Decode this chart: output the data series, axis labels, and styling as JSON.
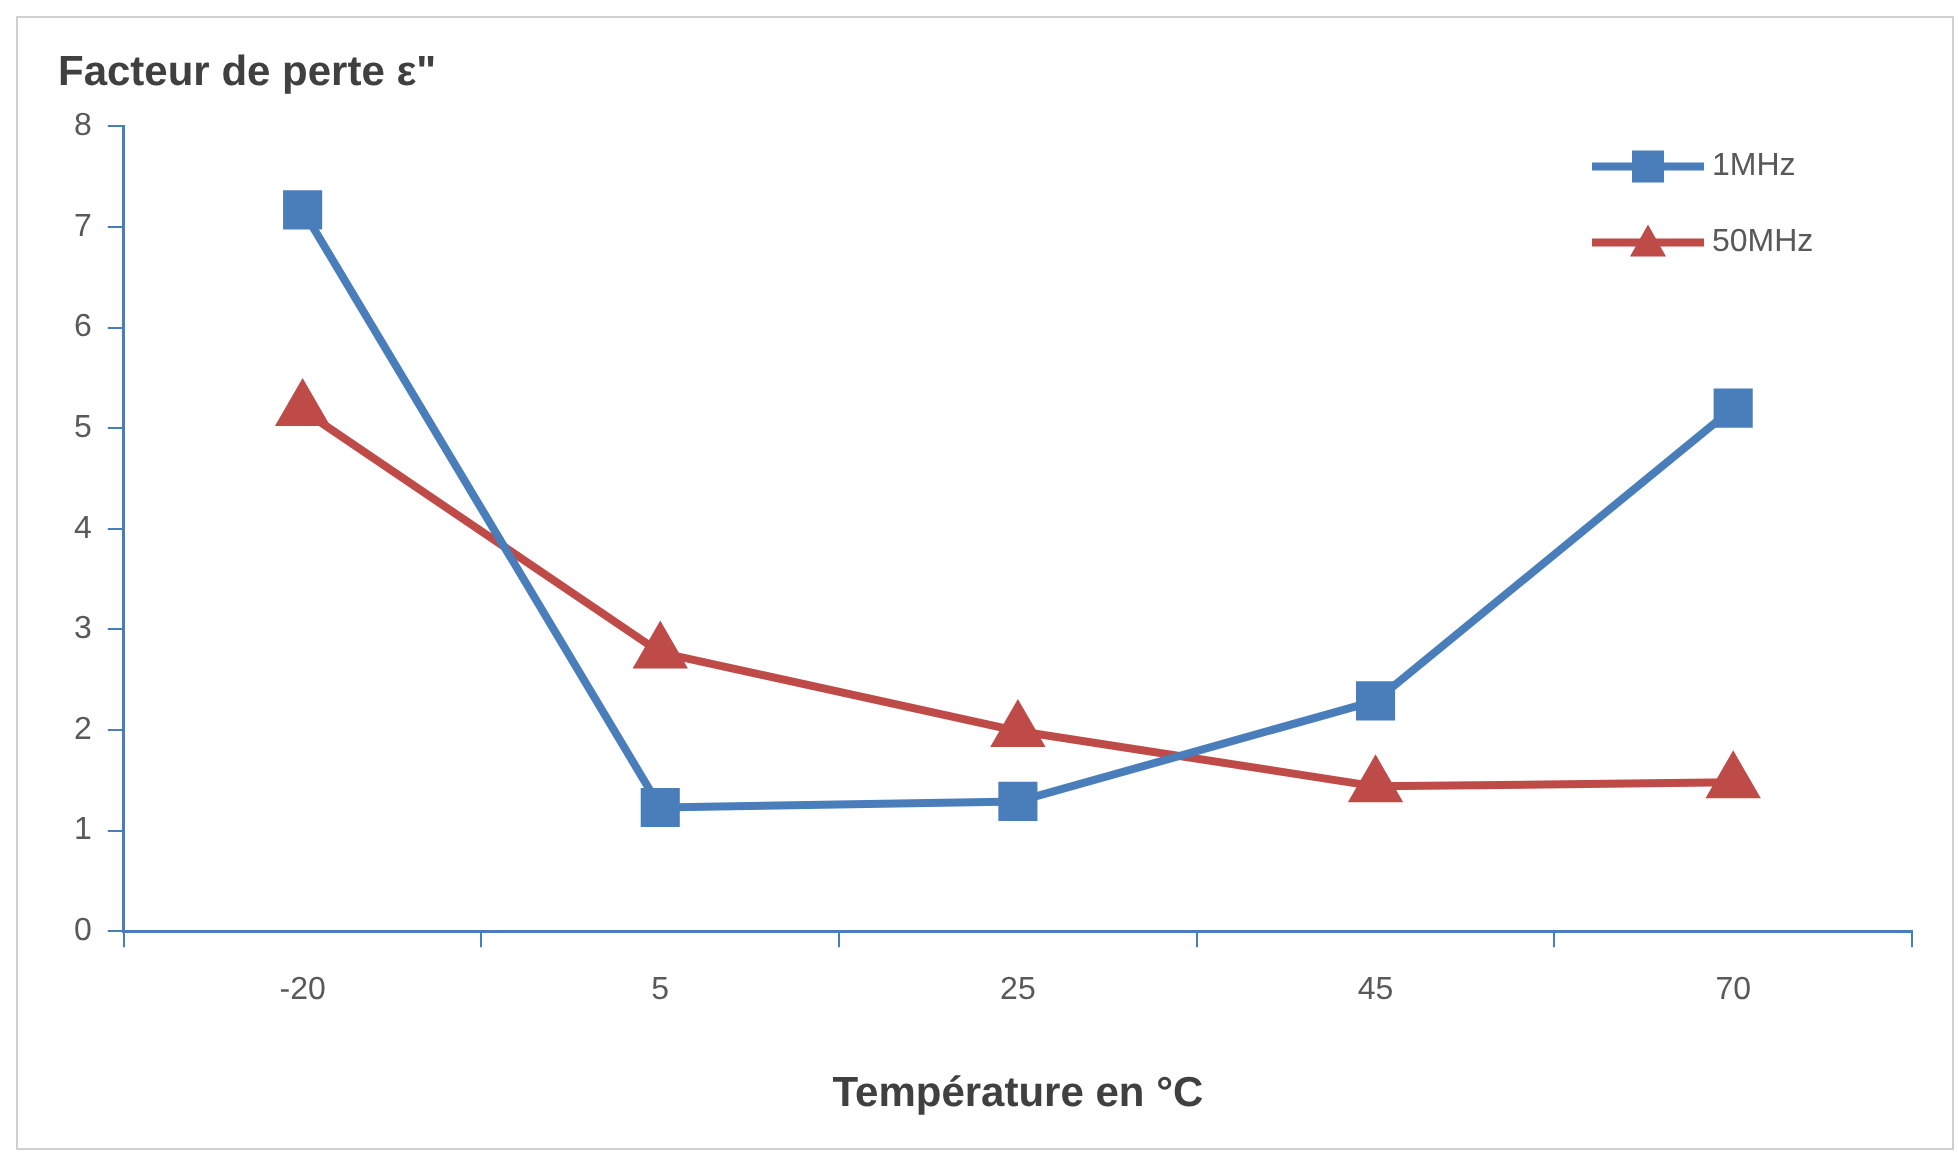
{
  "chart_data": {
    "type": "line",
    "ylabel": "Facteur de perte ε\"",
    "xlabel": "Température en °C",
    "categories": [
      "-20",
      "5",
      "25",
      "45",
      "70"
    ],
    "series": [
      {
        "name": "1MHz",
        "color": "#4a7ebb",
        "marker": "square",
        "values": [
          7.17,
          1.23,
          1.29,
          2.29,
          5.2
        ]
      },
      {
        "name": "50MHz",
        "color": "#be4b48",
        "marker": "triangle",
        "values": [
          5.18,
          2.77,
          1.99,
          1.44,
          1.48
        ]
      }
    ],
    "ylim": [
      0,
      8
    ],
    "yticks": [
      0,
      1,
      2,
      3,
      4,
      5,
      6,
      7,
      8
    ],
    "grid": false,
    "legend": "top right",
    "line_style": "solid"
  }
}
